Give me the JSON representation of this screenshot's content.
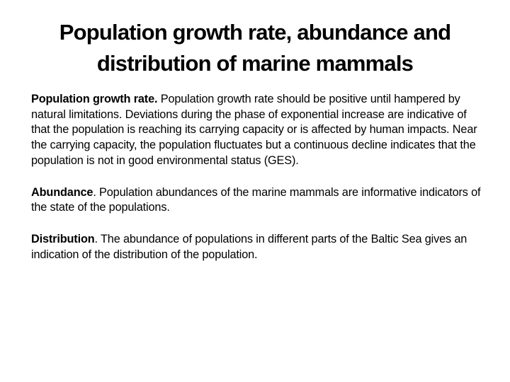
{
  "slide": {
    "title": "Population growth rate, abundance and distribution of marine mammals",
    "paragraphs": [
      {
        "lead": "Population growth rate.",
        "text": " Population growth rate should be positive until hampered by natural limitations. Deviations during the phase of exponential increase are indicative of that the population is reaching its carrying capacity or is affected by human impacts. Near the carrying capacity, the population fluctuates but a continuous decline indicates that the population is not in good environmental status (GES)."
      },
      {
        "lead": "Abundance",
        "text": ". Population abundances of the marine mammals are informative indicators of the state of the populations."
      },
      {
        "lead": "Distribution",
        "text": ". The abundance of populations in different parts of the Baltic Sea gives an indication of the distribution of the population."
      }
    ]
  }
}
